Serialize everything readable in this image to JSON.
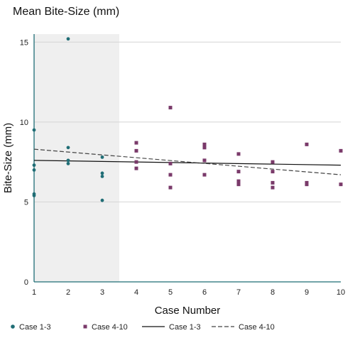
{
  "chart_data": {
    "type": "scatter",
    "title": "Mean Bite-Size (mm)",
    "xlabel": "Case Number",
    "ylabel": "Bite-Size (mm)",
    "xlim": [
      1,
      10
    ],
    "ylim": [
      0,
      15.5
    ],
    "xticks": [
      "1",
      "2",
      "3",
      "4",
      "5",
      "6",
      "7",
      "8",
      "9",
      "10"
    ],
    "yticks": [
      "0",
      "5",
      "10",
      "15"
    ],
    "grid": "horizontal",
    "shaded_region": {
      "x_from": 1,
      "x_to": 3.5
    },
    "legend_position": "bottom",
    "colors": {
      "case_1_3": "#1f6d75",
      "case_4_10": "#7a3a6a",
      "trend_1_3": "#111111",
      "trend_4_10": "#444444",
      "shading": "#efefef"
    },
    "series": [
      {
        "name": "Case 1-3",
        "kind": "points",
        "marker": "circle",
        "points": [
          [
            1,
            9.5
          ],
          [
            1,
            7.3
          ],
          [
            1,
            7.0
          ],
          [
            1,
            5.5
          ],
          [
            1,
            5.4
          ],
          [
            2,
            15.2
          ],
          [
            2,
            8.4
          ],
          [
            2,
            7.6
          ],
          [
            2,
            7.4
          ],
          [
            3,
            7.8
          ],
          [
            3,
            6.8
          ],
          [
            3,
            6.6
          ],
          [
            3,
            5.1
          ]
        ]
      },
      {
        "name": "Case 4-10",
        "kind": "points",
        "marker": "square",
        "points": [
          [
            4,
            8.7
          ],
          [
            4,
            8.2
          ],
          [
            4,
            7.5
          ],
          [
            4,
            7.1
          ],
          [
            5,
            10.9
          ],
          [
            5,
            7.4
          ],
          [
            5,
            6.7
          ],
          [
            5,
            5.9
          ],
          [
            6,
            8.6
          ],
          [
            6,
            8.4
          ],
          [
            6,
            7.6
          ],
          [
            6,
            6.7
          ],
          [
            7,
            8.0
          ],
          [
            7,
            6.9
          ],
          [
            7,
            6.3
          ],
          [
            7,
            6.1
          ],
          [
            8,
            7.5
          ],
          [
            8,
            6.9
          ],
          [
            8,
            6.2
          ],
          [
            8,
            5.9
          ],
          [
            9,
            8.6
          ],
          [
            9,
            6.2
          ],
          [
            9,
            6.1
          ],
          [
            10,
            8.2
          ],
          [
            10,
            6.1
          ]
        ]
      },
      {
        "name": "Case 1-3",
        "kind": "trendline",
        "style": "solid",
        "points": [
          [
            1,
            7.6
          ],
          [
            10,
            7.3
          ]
        ]
      },
      {
        "name": "Case 4-10",
        "kind": "trendline",
        "style": "dashed",
        "points": [
          [
            1,
            8.3
          ],
          [
            10,
            6.7
          ]
        ]
      }
    ]
  }
}
